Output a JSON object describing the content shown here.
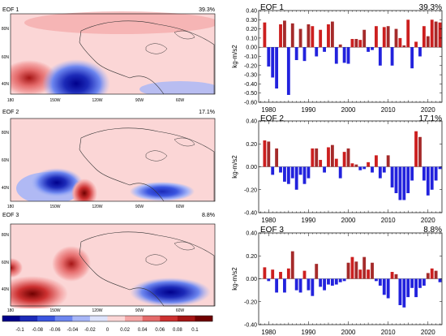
{
  "maps": [
    {
      "label": "EOF 1",
      "pct": "39.3%"
    },
    {
      "label": "EOF 2",
      "pct": "17.1%"
    },
    {
      "label": "EOF 3",
      "pct": "8.8%"
    }
  ],
  "map_axes": {
    "lat_ticks": [
      "80N",
      "60N",
      "40N"
    ],
    "lon_ticks": [
      "180",
      "150W",
      "120W",
      "90W",
      "60W"
    ]
  },
  "colorbar": {
    "labels": [
      "-0.1",
      "-0.08",
      "-0.06",
      "-0.04",
      "-0.02",
      "0",
      "0.02",
      "0.04",
      "0.06",
      "0.08",
      "0.1"
    ],
    "colors": [
      "#00008c",
      "#1c2ab8",
      "#3a55e0",
      "#6d86ef",
      "#a7b6f7",
      "#dde3fb",
      "#fbd6d6",
      "#f4a6a6",
      "#e46a6a",
      "#cc3030",
      "#a51515",
      "#700000"
    ]
  },
  "colors": {
    "positive": "#cc1f1f",
    "negative": "#2222dd",
    "positive_dark": "#a52a2a"
  },
  "chart_data": [
    {
      "type": "bar",
      "title": "EOF 1",
      "pct": "39.3%",
      "ylabel": "kg-m/s2",
      "ylim": [
        -0.6,
        0.4
      ],
      "yticks": [
        -0.6,
        -0.5,
        -0.4,
        -0.3,
        -0.2,
        -0.1,
        0.0,
        0.1,
        0.2,
        0.3,
        0.4
      ],
      "ytick_labels": [
        "-0.60",
        "-0.50",
        "-0.40",
        "-0.30",
        "-0.20",
        "-0.10",
        "0.00",
        "0.10",
        "0.20",
        "0.30",
        "0.40"
      ],
      "xticks": [
        1980,
        1990,
        2000,
        2010,
        2020
      ],
      "xlim": [
        1977.5,
        2023.5
      ],
      "x": [
        1979,
        1980,
        1981,
        1982,
        1983,
        1984,
        1985,
        1986,
        1987,
        1988,
        1989,
        1990,
        1991,
        1992,
        1993,
        1994,
        1995,
        1996,
        1997,
        1998,
        1999,
        2000,
        2001,
        2002,
        2003,
        2004,
        2005,
        2006,
        2007,
        2008,
        2009,
        2010,
        2011,
        2012,
        2013,
        2014,
        2015,
        2016,
        2017,
        2018,
        2019,
        2020,
        2021,
        2022,
        2023
      ],
      "values": [
        0.27,
        -0.21,
        -0.33,
        -0.45,
        0.25,
        0.29,
        -0.52,
        0.26,
        -0.14,
        0.2,
        -0.15,
        0.25,
        0.23,
        -0.1,
        0.19,
        -0.05,
        0.25,
        0.28,
        -0.18,
        0.03,
        -0.17,
        -0.18,
        0.09,
        0.09,
        0.08,
        0.19,
        -0.05,
        -0.03,
        0.23,
        -0.2,
        0.22,
        0.23,
        -0.2,
        0.2,
        0.1,
        0.02,
        0.3,
        -0.23,
        0.06,
        -0.1,
        0.23,
        0.12,
        0.3,
        0.28,
        0.27
      ]
    },
    {
      "type": "bar",
      "title": "EOF 2",
      "pct": "17.1%",
      "ylabel": "kg-m/s2",
      "ylim": [
        -0.4,
        0.4
      ],
      "yticks": [
        -0.4,
        -0.2,
        0.0,
        0.2,
        0.4
      ],
      "ytick_labels": [
        "-0.40",
        "-0.20",
        "0.00",
        "0.20",
        "0.40"
      ],
      "xticks": [
        1980,
        1990,
        2000,
        2010,
        2020
      ],
      "xlim": [
        1977.5,
        2023.5
      ],
      "x": [
        1979,
        1980,
        1981,
        1982,
        1983,
        1984,
        1985,
        1986,
        1987,
        1988,
        1989,
        1990,
        1991,
        1992,
        1993,
        1994,
        1995,
        1996,
        1997,
        1998,
        1999,
        2000,
        2001,
        2002,
        2003,
        2004,
        2005,
        2006,
        2007,
        2008,
        2009,
        2010,
        2011,
        2012,
        2013,
        2014,
        2015,
        2016,
        2017,
        2018,
        2019,
        2020,
        2021,
        2022,
        2023
      ],
      "values": [
        0.23,
        0.22,
        -0.07,
        0.16,
        -0.05,
        -0.13,
        -0.15,
        -0.1,
        -0.2,
        -0.07,
        -0.15,
        -0.1,
        0.16,
        0.16,
        0.06,
        -0.05,
        0.17,
        0.19,
        0.07,
        -0.1,
        0.13,
        0.16,
        0.03,
        0.02,
        -0.03,
        -0.02,
        0.04,
        -0.05,
        0.1,
        -0.1,
        -0.05,
        0.1,
        -0.18,
        -0.23,
        -0.29,
        -0.29,
        -0.23,
        -0.12,
        0.31,
        0.26,
        -0.12,
        -0.25,
        -0.2,
        -0.12,
        -0.02
      ]
    },
    {
      "type": "bar",
      "title": "EOF 3",
      "pct": "8.8%",
      "ylabel": "kg-m/s2",
      "ylim": [
        -0.4,
        0.4
      ],
      "yticks": [
        -0.4,
        -0.2,
        0.0,
        0.2,
        0.4
      ],
      "ytick_labels": [
        "-0.40",
        "-0.20",
        "0.00",
        "0.20",
        "0.40"
      ],
      "xticks": [
        1980,
        1990,
        2000,
        2010,
        2020
      ],
      "xlim": [
        1977.5,
        2023.5
      ],
      "x": [
        1979,
        1980,
        1981,
        1982,
        1983,
        1984,
        1985,
        1986,
        1987,
        1988,
        1989,
        1990,
        1991,
        1992,
        1993,
        1994,
        1995,
        1996,
        1997,
        1998,
        1999,
        2000,
        2001,
        2002,
        2003,
        2004,
        2005,
        2006,
        2007,
        2008,
        2009,
        2010,
        2011,
        2012,
        2013,
        2014,
        2015,
        2016,
        2017,
        2018,
        2019,
        2020,
        2021,
        2022,
        2023
      ],
      "values": [
        0.1,
        -0.02,
        0.08,
        -0.12,
        0.06,
        -0.12,
        0.09,
        0.24,
        -0.1,
        -0.12,
        0.07,
        -0.1,
        -0.15,
        0.13,
        -0.07,
        -0.1,
        -0.05,
        -0.06,
        -0.05,
        -0.03,
        -0.02,
        0.14,
        0.19,
        0.15,
        0.08,
        0.19,
        0.08,
        0.14,
        -0.02,
        -0.06,
        -0.14,
        -0.17,
        0.06,
        0.04,
        -0.23,
        -0.25,
        -0.16,
        -0.08,
        -0.16,
        -0.08,
        -0.06,
        0.05,
        0.09,
        0.07,
        -0.03
      ]
    }
  ]
}
